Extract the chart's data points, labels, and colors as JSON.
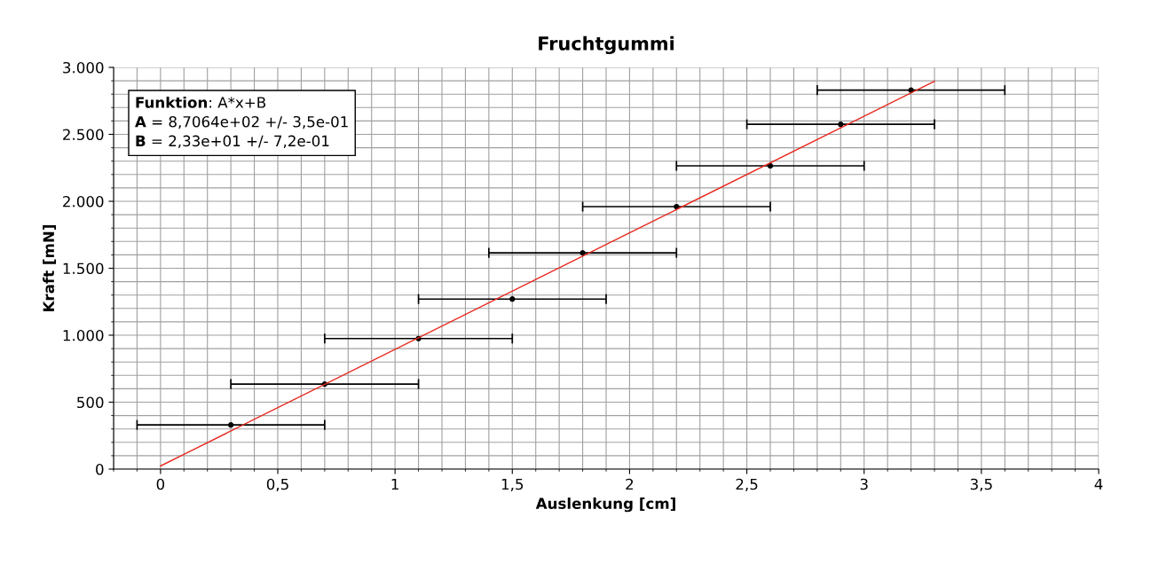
{
  "chart_data": {
    "type": "scatter",
    "title": "Fruchtgummi",
    "xlabel": "Auslenkung [cm]",
    "ylabel": "Kraft [mN]",
    "annotations": [
      "Funktion: A*x+B",
      "A = 8,7064e+02 +/- 3,5e-01",
      "B = 2,33e+01 +/- 7,2e-01"
    ],
    "series": [
      {
        "color": "#000000",
        "x": [
          0.3,
          0.7,
          1.1,
          1.5,
          1.8,
          2.2,
          2.6,
          2.9,
          3.2
        ],
        "values": [
          330,
          635,
          975,
          1270,
          1615,
          1960,
          2265,
          2575,
          2830
        ],
        "xerrors": [
          0.4,
          0.4,
          0.4,
          0.4,
          0.4,
          0.4,
          0.4,
          0.4,
          0.4
        ],
        "marker": "circle"
      },
      {
        "type": "line",
        "color": "#e8281e",
        "x": [
          0,
          3.3
        ],
        "values": [
          23.3,
          2896.4
        ]
      }
    ],
    "xlim": [
      -0.2,
      4
    ],
    "ylim": [
      0,
      3000
    ],
    "xticks": [
      0,
      {
        "value": 0.5,
        "label": "0,5"
      },
      1,
      {
        "value": 1.5,
        "label": "1,5"
      },
      2,
      {
        "value": 2.5,
        "label": "2,5"
      },
      3,
      {
        "value": 3.5,
        "label": "3,5"
      },
      4
    ],
    "yticks": [
      0,
      500,
      {
        "value": 1000,
        "label": "1.000"
      },
      {
        "value": 1500,
        "label": "1.500"
      },
      {
        "value": 2000,
        "label": "2.000"
      },
      {
        "value": 2500,
        "label": "2.500"
      },
      {
        "value": 3000,
        "label": "3.000"
      }
    ],
    "grid": true,
    "legend": false
  }
}
